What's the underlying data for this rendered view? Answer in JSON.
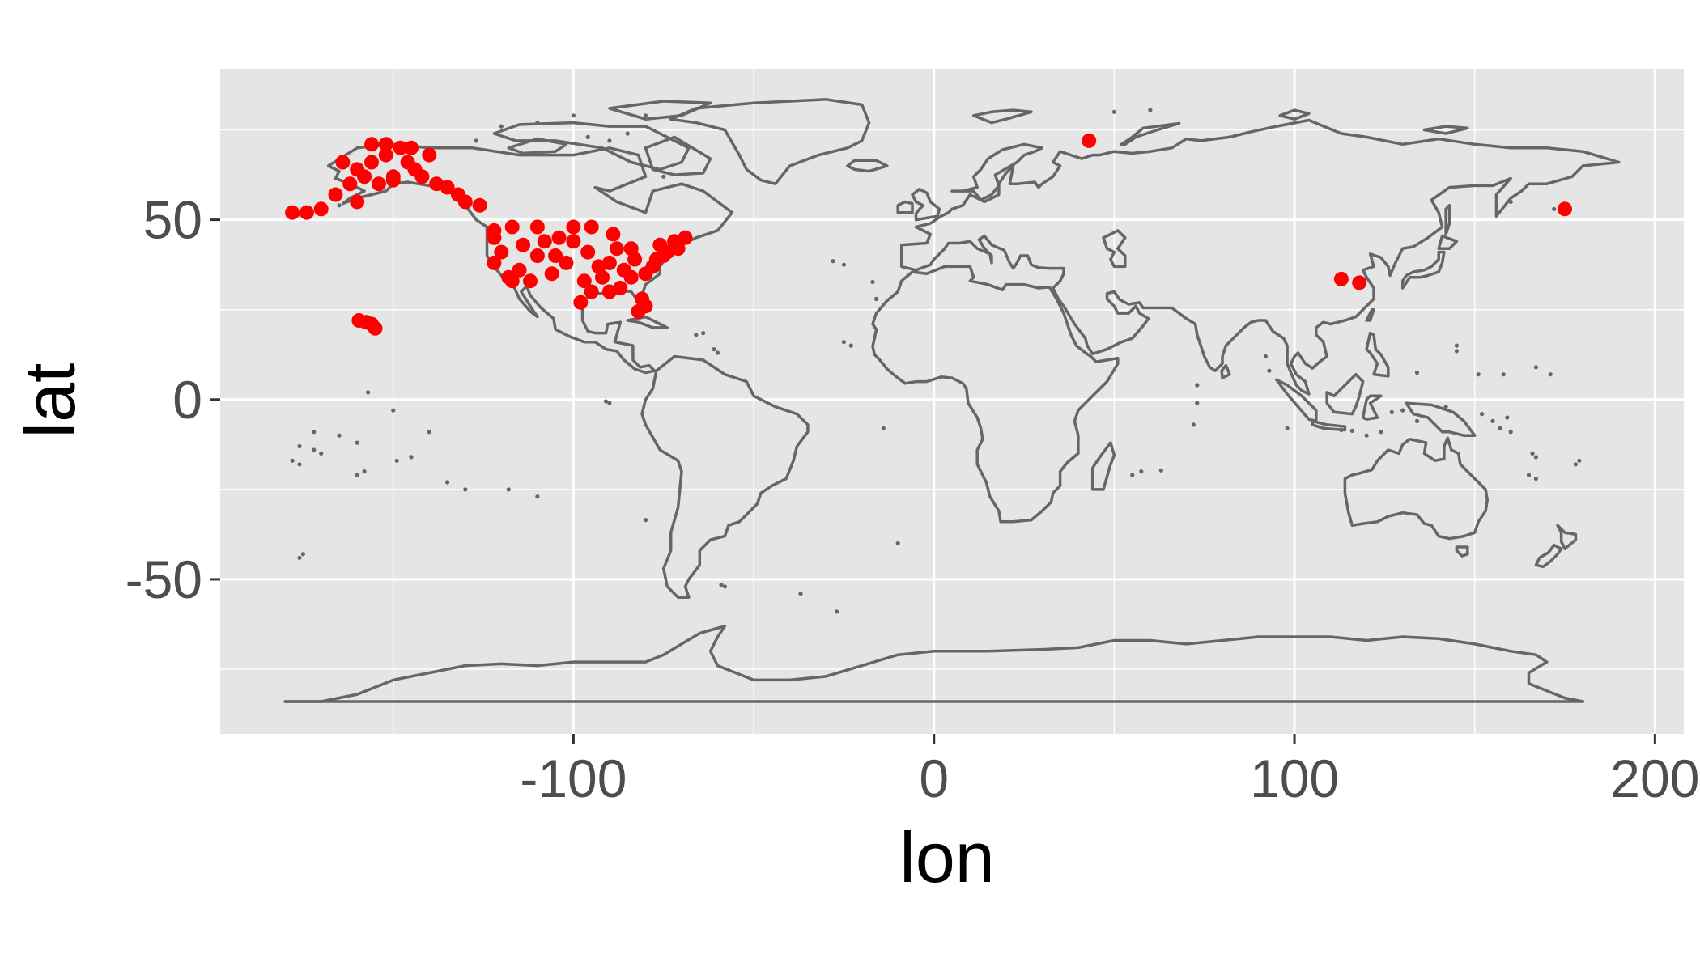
{
  "chart_data": {
    "type": "scatter",
    "title": "",
    "xlabel": "lon",
    "ylabel": "lat",
    "xlim": [
      -198,
      208
    ],
    "ylim": [
      -93,
      92
    ],
    "x_ticks": [
      -100,
      0,
      100,
      200
    ],
    "x_tick_labels": [
      "-100",
      "0",
      "100",
      "200"
    ],
    "y_ticks": [
      -50,
      0,
      50
    ],
    "y_tick_labels": [
      "-50",
      "0",
      "50"
    ],
    "grid": true,
    "legend": "none",
    "colors": {
      "panel": "#e5e5e5",
      "grid": "#ffffff",
      "map_outline": "#666666",
      "points": "#ff0000"
    },
    "background_layer": "world map country outlines",
    "series": [
      {
        "values": [
          {
            "x": -160,
            "y": 64
          },
          {
            "x": -156,
            "y": 66
          },
          {
            "x": -152,
            "y": 68
          },
          {
            "x": -148,
            "y": 70
          },
          {
            "x": -146,
            "y": 66
          },
          {
            "x": -150,
            "y": 62
          },
          {
            "x": -154,
            "y": 60
          },
          {
            "x": -158,
            "y": 62
          },
          {
            "x": -162,
            "y": 60
          },
          {
            "x": -164,
            "y": 66
          },
          {
            "x": -144,
            "y": 64
          },
          {
            "x": -140,
            "y": 68
          },
          {
            "x": -142,
            "y": 62
          },
          {
            "x": -138,
            "y": 60
          },
          {
            "x": -135,
            "y": 59
          },
          {
            "x": -132,
            "y": 57
          },
          {
            "x": -130,
            "y": 55
          },
          {
            "x": -126,
            "y": 54
          },
          {
            "x": -166,
            "y": 57
          },
          {
            "x": -170,
            "y": 53
          },
          {
            "x": -174,
            "y": 52
          },
          {
            "x": -178,
            "y": 52
          },
          {
            "x": -160,
            "y": 55
          },
          {
            "x": -150,
            "y": 61
          },
          {
            "x": -156,
            "y": 71
          },
          {
            "x": -152,
            "y": 71
          },
          {
            "x": -145,
            "y": 70
          },
          {
            "x": -157.5,
            "y": 21.5
          },
          {
            "x": -156,
            "y": 21
          },
          {
            "x": -155,
            "y": 19.8
          },
          {
            "x": -159.5,
            "y": 22
          },
          {
            "x": -122,
            "y": 47
          },
          {
            "x": -122,
            "y": 45
          },
          {
            "x": -122,
            "y": 38
          },
          {
            "x": -118,
            "y": 34
          },
          {
            "x": -117,
            "y": 33
          },
          {
            "x": -112,
            "y": 33
          },
          {
            "x": -110,
            "y": 40
          },
          {
            "x": -105,
            "y": 40
          },
          {
            "x": -104,
            "y": 45
          },
          {
            "x": -100,
            "y": 44
          },
          {
            "x": -97,
            "y": 33
          },
          {
            "x": -95,
            "y": 30
          },
          {
            "x": -98,
            "y": 27
          },
          {
            "x": -90,
            "y": 30
          },
          {
            "x": -90,
            "y": 38
          },
          {
            "x": -88,
            "y": 42
          },
          {
            "x": -84,
            "y": 42
          },
          {
            "x": -84,
            "y": 34
          },
          {
            "x": -81,
            "y": 28
          },
          {
            "x": -80,
            "y": 26
          },
          {
            "x": -82,
            "y": 24.5
          },
          {
            "x": -80,
            "y": 35
          },
          {
            "x": -77,
            "y": 39
          },
          {
            "x": -75,
            "y": 40
          },
          {
            "x": -74,
            "y": 41
          },
          {
            "x": -71,
            "y": 42
          },
          {
            "x": -69,
            "y": 45
          },
          {
            "x": -72,
            "y": 44
          },
          {
            "x": -117,
            "y": 48
          },
          {
            "x": -110,
            "y": 48
          },
          {
            "x": -100,
            "y": 48
          },
          {
            "x": -95,
            "y": 48
          },
          {
            "x": -89,
            "y": 46
          },
          {
            "x": -93,
            "y": 37
          },
          {
            "x": -86,
            "y": 36
          },
          {
            "x": -106,
            "y": 35
          },
          {
            "x": -115,
            "y": 36
          },
          {
            "x": -120,
            "y": 41
          },
          {
            "x": -114,
            "y": 43
          },
          {
            "x": -108,
            "y": 44
          },
          {
            "x": -102,
            "y": 38
          },
          {
            "x": -96,
            "y": 41
          },
          {
            "x": -92,
            "y": 34
          },
          {
            "x": -87,
            "y": 31
          },
          {
            "x": -83,
            "y": 39
          },
          {
            "x": -78,
            "y": 37
          },
          {
            "x": -76,
            "y": 43
          },
          {
            "x": 43,
            "y": 72
          },
          {
            "x": 113,
            "y": 33.5
          },
          {
            "x": 118,
            "y": 32.5
          },
          {
            "x": 175,
            "y": 53
          }
        ]
      }
    ]
  }
}
